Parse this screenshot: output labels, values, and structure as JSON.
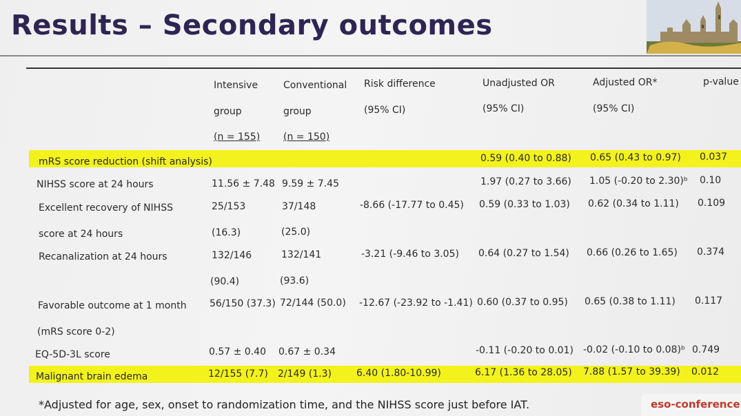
{
  "slide": {
    "title": "Results – Secondary outcomes",
    "footnote": "*Adjusted for age, sex, onset to randomization time, and the NIHSS score just before IAT.",
    "conference": "eso-conference.o",
    "highlight_color": "#f3f21c",
    "title_color": "#2e2553"
  },
  "table": {
    "headers": {
      "intensive": [
        "Intensive",
        "group",
        "(n = 155)"
      ],
      "conventional": [
        "Conventional",
        "group",
        "(n = 150)"
      ],
      "risk_difference": [
        "Risk difference",
        "(95% CI)"
      ],
      "unadjusted_or": [
        "Unadjusted OR",
        "(95% CI)"
      ],
      "adjusted_or": [
        "Adjusted OR*",
        "(95% CI)"
      ],
      "p_value": [
        "p-value"
      ]
    },
    "rows": [
      {
        "outcome": "mRS score reduction (shift analysis)",
        "intensive": "",
        "conventional": "",
        "risk_difference": "",
        "unadjusted_or": "0.59 (0.40 to 0.88)",
        "adjusted_or": "0.65 (0.43 to 0.97)",
        "p_value": "0.037",
        "highlight": true
      },
      {
        "outcome": "NIHSS score at 24 hours",
        "intensive": "11.56 ± 7.48",
        "conventional": "9.59 ± 7.45",
        "risk_difference": "",
        "unadjusted_or": "1.97 (0.27 to 3.66)",
        "adjusted_or": "1.05 (-0.20 to 2.30)ᵇ",
        "p_value": "0.10"
      },
      {
        "outcome": "Excellent recovery of NIHSS",
        "intensive": "25/153",
        "conventional": "37/148",
        "risk_difference": "-8.66 (-17.77 to 0.45)",
        "unadjusted_or": "0.59 (0.33 to 1.03)",
        "adjusted_or": "0.62 (0.34 to 1.11)",
        "p_value": "0.109"
      },
      {
        "outcome": "score at 24 hours",
        "intensive": "(16.3)",
        "conventional": "(25.0)"
      },
      {
        "outcome": "Recanalization at 24 hours",
        "intensive": "132/146",
        "conventional": "132/141",
        "risk_difference": "-3.21 (-9.46 to 3.05)",
        "unadjusted_or": "0.64 (0.27 to 1.54)",
        "adjusted_or": "0.66 (0.26 to 1.65)",
        "p_value": "0.374"
      },
      {
        "outcome": "",
        "intensive": "(90.4)",
        "conventional": "(93.6)"
      },
      {
        "outcome": "Favorable outcome at 1 month",
        "intensive": "56/150 (37.3)",
        "conventional": "72/144 (50.0)",
        "risk_difference": "-12.67 (-23.92 to -1.41)",
        "unadjusted_or": "0.60 (0.37 to 0.95)",
        "adjusted_or": "0.65 (0.38 to 1.11)",
        "p_value": "0.117"
      },
      {
        "outcome": "(mRS score 0-2)"
      },
      {
        "outcome": "EQ-5D-3L score",
        "intensive": "0.57 ± 0.40",
        "conventional": "0.67 ± 0.34",
        "risk_difference": "",
        "unadjusted_or": "-0.11 (-0.20 to 0.01)",
        "adjusted_or": "-0.02 (-0.10 to 0.08)ᵇ",
        "p_value": "0.749"
      },
      {
        "outcome": "Malignant brain edema",
        "intensive": "12/155 (7.7)",
        "conventional": "2/149 (1.3)",
        "risk_difference": "6.40 (1.80-10.99)",
        "unadjusted_or": "6.17 (1.36 to 28.05)",
        "adjusted_or": "7.88 (1.57 to 39.39)",
        "p_value": "0.012",
        "highlight": true
      }
    ]
  }
}
